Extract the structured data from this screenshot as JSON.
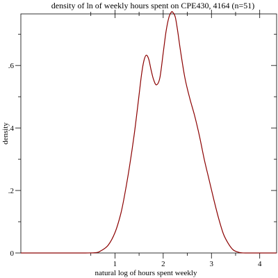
{
  "chart_data": {
    "type": "line",
    "title": "density of ln of weekly hours spent on CPE430, 4164 (n=51)",
    "xlabel": "natural log of hours spent weekly",
    "ylabel": "density",
    "xlim": [
      -0.95,
      4.35
    ],
    "ylim": [
      0,
      0.765
    ],
    "x_ticks": [
      {
        "value": 1,
        "label": "1"
      },
      {
        "value": 2,
        "label": "2"
      },
      {
        "value": 3,
        "label": "3"
      },
      {
        "value": 4,
        "label": "4"
      }
    ],
    "x_minor_ticks": [
      0.5,
      1.5,
      2.5,
      3.5
    ],
    "y_ticks": [
      {
        "value": 0,
        "label": "0"
      },
      {
        "value": 0.2,
        "label": ".2"
      },
      {
        "value": 0.4,
        "label": ".4"
      },
      {
        "value": 0.6,
        "label": ".6"
      }
    ],
    "y_minor_ticks": [
      0.1,
      0.3,
      0.5,
      0.7
    ],
    "grid": false,
    "line_color": "#8b0000",
    "series": [
      {
        "x": [
          -0.95,
          0.3,
          0.6,
          0.72,
          0.86,
          1.0,
          1.12,
          1.2,
          1.3,
          1.4,
          1.48,
          1.55,
          1.6,
          1.65,
          1.7,
          1.75,
          1.8,
          1.86,
          1.93,
          2.0,
          2.06,
          2.12,
          2.17,
          2.2,
          2.25,
          2.3,
          2.36,
          2.45,
          2.55,
          2.65,
          2.75,
          2.85,
          2.95,
          3.05,
          3.15,
          3.25,
          3.35,
          3.45,
          3.55,
          3.7,
          4.35
        ],
        "y": [
          0,
          0,
          0.001,
          0.008,
          0.025,
          0.065,
          0.125,
          0.185,
          0.275,
          0.38,
          0.48,
          0.57,
          0.615,
          0.633,
          0.62,
          0.585,
          0.555,
          0.538,
          0.56,
          0.64,
          0.71,
          0.755,
          0.771,
          0.77,
          0.755,
          0.71,
          0.645,
          0.56,
          0.495,
          0.44,
          0.375,
          0.3,
          0.235,
          0.17,
          0.11,
          0.06,
          0.03,
          0.01,
          0.003,
          0,
          0
        ]
      }
    ]
  }
}
